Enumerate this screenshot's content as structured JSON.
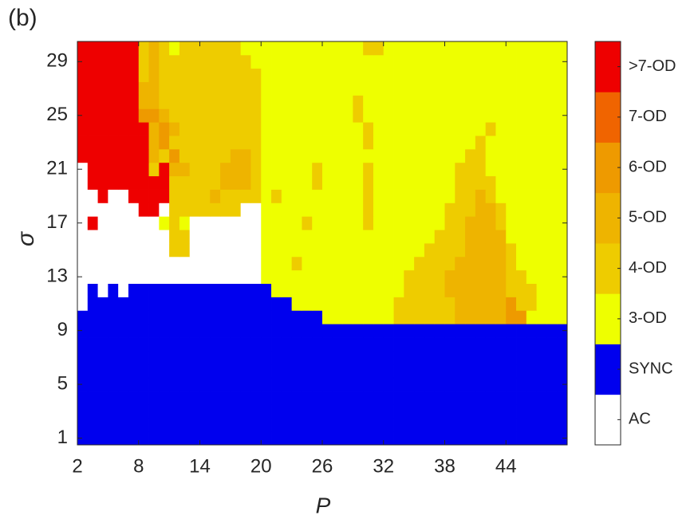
{
  "chart_data": {
    "type": "heatmap",
    "panel_label": "(b)",
    "xlabel": "P",
    "ylabel": "σ",
    "x": [
      2,
      3,
      4,
      5,
      6,
      7,
      8,
      9,
      10,
      11,
      12,
      13,
      14,
      15,
      16,
      17,
      18,
      19,
      20,
      21,
      22,
      23,
      24,
      25,
      26,
      27,
      28,
      29,
      30,
      31,
      32,
      33,
      34,
      35,
      36,
      37,
      38,
      39,
      40,
      41,
      42,
      43,
      44,
      45,
      46,
      47,
      48,
      49
    ],
    "y": [
      1,
      2,
      3,
      4,
      5,
      6,
      7,
      8,
      9,
      10,
      11,
      12,
      13,
      14,
      15,
      16,
      17,
      18,
      19,
      20,
      21,
      22,
      23,
      24,
      25,
      26,
      27,
      28,
      29,
      30
    ],
    "xlim": [
      2,
      50
    ],
    "ylim": [
      0.5,
      30.5
    ],
    "xticks": [
      2,
      8,
      14,
      20,
      26,
      32,
      38,
      44
    ],
    "yticks": [
      1,
      5,
      9,
      13,
      17,
      21,
      25,
      29
    ],
    "categories": [
      "AC",
      "SYNC",
      "3-OD",
      "4-OD",
      "5-OD",
      "6-OD",
      "7-OD",
      ">7-OD"
    ],
    "colors": [
      "#ffffff",
      "#0000ee",
      "#eeff00",
      "#eecc00",
      "#eeb400",
      "#ee9a00",
      "#f06400",
      "#ee0000"
    ],
    "z": [
      [
        1,
        1,
        1,
        1,
        1,
        1,
        1,
        1,
        1,
        1,
        1,
        1,
        1,
        1,
        1,
        1,
        1,
        1,
        1,
        1,
        1,
        1,
        1,
        1,
        1,
        1,
        1,
        1,
        1,
        1,
        1,
        1,
        1,
        1,
        1,
        1,
        1,
        1,
        1,
        1,
        1,
        1,
        1,
        1,
        1,
        1,
        1,
        1
      ],
      [
        1,
        1,
        1,
        1,
        1,
        1,
        1,
        1,
        1,
        1,
        1,
        1,
        1,
        1,
        1,
        1,
        1,
        1,
        1,
        1,
        1,
        1,
        1,
        1,
        1,
        1,
        1,
        1,
        1,
        1,
        1,
        1,
        1,
        1,
        1,
        1,
        1,
        1,
        1,
        1,
        1,
        1,
        1,
        1,
        1,
        1,
        1,
        1
      ],
      [
        1,
        1,
        1,
        1,
        1,
        1,
        1,
        1,
        1,
        1,
        1,
        1,
        1,
        1,
        1,
        1,
        1,
        1,
        1,
        1,
        1,
        1,
        1,
        1,
        1,
        1,
        1,
        1,
        1,
        1,
        1,
        1,
        1,
        1,
        1,
        1,
        1,
        1,
        1,
        1,
        1,
        1,
        1,
        1,
        1,
        1,
        1,
        1
      ],
      [
        1,
        1,
        1,
        1,
        1,
        1,
        1,
        1,
        1,
        1,
        1,
        1,
        1,
        1,
        1,
        1,
        1,
        1,
        1,
        1,
        1,
        1,
        1,
        1,
        1,
        1,
        1,
        1,
        1,
        1,
        1,
        1,
        1,
        1,
        1,
        1,
        1,
        1,
        1,
        1,
        1,
        1,
        1,
        1,
        1,
        1,
        1,
        1
      ],
      [
        1,
        1,
        1,
        1,
        1,
        1,
        1,
        1,
        1,
        1,
        1,
        1,
        1,
        1,
        1,
        1,
        1,
        1,
        1,
        1,
        1,
        1,
        1,
        1,
        1,
        1,
        1,
        1,
        1,
        1,
        1,
        1,
        1,
        1,
        1,
        1,
        1,
        1,
        1,
        1,
        1,
        1,
        1,
        1,
        1,
        1,
        1,
        1
      ],
      [
        1,
        1,
        1,
        1,
        1,
        1,
        1,
        1,
        1,
        1,
        1,
        1,
        1,
        1,
        1,
        1,
        1,
        1,
        1,
        1,
        1,
        1,
        1,
        1,
        1,
        1,
        1,
        1,
        1,
        1,
        1,
        1,
        1,
        1,
        1,
        1,
        1,
        1,
        1,
        1,
        1,
        1,
        1,
        1,
        1,
        1,
        1,
        1
      ],
      [
        1,
        1,
        1,
        1,
        1,
        1,
        1,
        1,
        1,
        1,
        1,
        1,
        1,
        1,
        1,
        1,
        1,
        1,
        1,
        1,
        1,
        1,
        1,
        1,
        1,
        1,
        1,
        1,
        1,
        1,
        1,
        1,
        1,
        1,
        1,
        1,
        1,
        1,
        1,
        1,
        1,
        1,
        1,
        1,
        1,
        1,
        1,
        1
      ],
      [
        1,
        1,
        1,
        1,
        1,
        1,
        1,
        1,
        1,
        1,
        1,
        1,
        1,
        1,
        1,
        1,
        1,
        1,
        1,
        1,
        1,
        1,
        1,
        1,
        1,
        1,
        1,
        1,
        1,
        1,
        1,
        1,
        1,
        1,
        1,
        1,
        1,
        1,
        1,
        1,
        1,
        1,
        1,
        1,
        1,
        1,
        1,
        1
      ],
      [
        1,
        1,
        1,
        1,
        1,
        1,
        1,
        1,
        1,
        1,
        1,
        1,
        1,
        1,
        1,
        1,
        1,
        1,
        1,
        1,
        1,
        1,
        1,
        1,
        1,
        1,
        1,
        1,
        1,
        1,
        1,
        1,
        1,
        1,
        1,
        1,
        1,
        1,
        1,
        1,
        1,
        1,
        1,
        1,
        1,
        1,
        1,
        1
      ],
      [
        1,
        1,
        1,
        1,
        1,
        1,
        1,
        1,
        1,
        1,
        1,
        1,
        1,
        1,
        1,
        1,
        1,
        1,
        1,
        1,
        1,
        1,
        1,
        1,
        2,
        2,
        2,
        2,
        2,
        2,
        2,
        3,
        3,
        3,
        3,
        3,
        3,
        4,
        4,
        4,
        4,
        4,
        5,
        5,
        2,
        2,
        2,
        2
      ],
      [
        0,
        1,
        1,
        1,
        1,
        1,
        1,
        1,
        1,
        1,
        1,
        1,
        1,
        1,
        1,
        1,
        1,
        1,
        1,
        1,
        1,
        2,
        2,
        2,
        2,
        2,
        2,
        2,
        2,
        2,
        2,
        3,
        3,
        3,
        3,
        3,
        3,
        4,
        4,
        4,
        4,
        4,
        5,
        3,
        3,
        2,
        2,
        2
      ],
      [
        0,
        1,
        0,
        1,
        0,
        1,
        1,
        1,
        1,
        1,
        1,
        1,
        1,
        1,
        1,
        1,
        1,
        1,
        1,
        2,
        2,
        2,
        2,
        2,
        2,
        2,
        2,
        2,
        2,
        2,
        2,
        2,
        3,
        3,
        3,
        3,
        4,
        4,
        4,
        4,
        4,
        4,
        3,
        3,
        3,
        2,
        2,
        2
      ],
      [
        0,
        0,
        0,
        0,
        0,
        0,
        0,
        0,
        0,
        0,
        0,
        0,
        0,
        0,
        0,
        0,
        0,
        0,
        2,
        2,
        2,
        2,
        2,
        2,
        2,
        2,
        2,
        2,
        2,
        2,
        2,
        2,
        3,
        3,
        3,
        3,
        4,
        4,
        4,
        4,
        4,
        4,
        3,
        3,
        2,
        2,
        2,
        2
      ],
      [
        0,
        0,
        0,
        0,
        0,
        0,
        0,
        0,
        0,
        0,
        0,
        0,
        0,
        0,
        0,
        0,
        0,
        0,
        2,
        2,
        2,
        3,
        2,
        2,
        2,
        2,
        2,
        2,
        2,
        2,
        2,
        2,
        2,
        3,
        3,
        3,
        3,
        4,
        4,
        4,
        4,
        4,
        3,
        2,
        2,
        2,
        2,
        2
      ],
      [
        0,
        0,
        0,
        0,
        0,
        0,
        0,
        0,
        0,
        3,
        3,
        0,
        0,
        0,
        0,
        0,
        0,
        0,
        2,
        2,
        2,
        2,
        2,
        2,
        2,
        2,
        2,
        2,
        2,
        2,
        2,
        2,
        2,
        2,
        3,
        3,
        3,
        3,
        4,
        4,
        4,
        4,
        3,
        2,
        2,
        2,
        2,
        2
      ],
      [
        0,
        0,
        0,
        0,
        0,
        0,
        0,
        0,
        0,
        3,
        3,
        0,
        0,
        0,
        0,
        0,
        0,
        0,
        2,
        2,
        2,
        2,
        2,
        2,
        2,
        2,
        2,
        2,
        2,
        2,
        2,
        2,
        2,
        2,
        2,
        3,
        3,
        3,
        4,
        4,
        4,
        4,
        2,
        2,
        2,
        2,
        2,
        2
      ],
      [
        0,
        7,
        0,
        0,
        0,
        0,
        0,
        0,
        2,
        3,
        2,
        0,
        0,
        0,
        0,
        0,
        0,
        0,
        2,
        2,
        2,
        2,
        3,
        2,
        2,
        2,
        2,
        2,
        3,
        2,
        2,
        2,
        2,
        2,
        2,
        2,
        3,
        3,
        4,
        4,
        4,
        3,
        2,
        2,
        2,
        2,
        2,
        2
      ],
      [
        0,
        0,
        0,
        0,
        0,
        0,
        7,
        7,
        0,
        3,
        3,
        3,
        3,
        3,
        3,
        3,
        0,
        0,
        2,
        2,
        2,
        2,
        2,
        2,
        2,
        2,
        2,
        2,
        3,
        2,
        2,
        2,
        2,
        2,
        2,
        2,
        3,
        3,
        3,
        4,
        4,
        3,
        2,
        2,
        2,
        2,
        2,
        2
      ],
      [
        0,
        0,
        7,
        0,
        0,
        7,
        7,
        7,
        7,
        3,
        3,
        3,
        3,
        4,
        3,
        3,
        3,
        3,
        2,
        3,
        2,
        2,
        2,
        2,
        2,
        2,
        2,
        2,
        3,
        2,
        2,
        2,
        2,
        2,
        2,
        2,
        2,
        3,
        3,
        4,
        3,
        2,
        2,
        2,
        2,
        2,
        2,
        2
      ],
      [
        0,
        7,
        7,
        7,
        7,
        7,
        7,
        7,
        7,
        3,
        3,
        3,
        3,
        3,
        4,
        4,
        4,
        3,
        2,
        2,
        2,
        2,
        2,
        3,
        2,
        2,
        2,
        2,
        3,
        2,
        2,
        2,
        2,
        2,
        2,
        2,
        2,
        3,
        3,
        3,
        3,
        2,
        2,
        2,
        2,
        2,
        2,
        2
      ],
      [
        0,
        7,
        7,
        7,
        7,
        7,
        7,
        3,
        7,
        4,
        4,
        3,
        3,
        3,
        4,
        4,
        4,
        3,
        2,
        2,
        2,
        2,
        2,
        3,
        2,
        2,
        2,
        2,
        3,
        2,
        2,
        2,
        2,
        2,
        2,
        2,
        2,
        3,
        3,
        3,
        2,
        2,
        2,
        2,
        2,
        2,
        2,
        2
      ],
      [
        7,
        7,
        7,
        7,
        7,
        7,
        7,
        4,
        3,
        5,
        3,
        3,
        3,
        3,
        3,
        4,
        4,
        3,
        2,
        2,
        2,
        2,
        2,
        2,
        2,
        2,
        2,
        2,
        2,
        2,
        2,
        2,
        2,
        2,
        2,
        2,
        2,
        2,
        3,
        3,
        2,
        2,
        2,
        2,
        2,
        2,
        2,
        2
      ],
      [
        7,
        7,
        7,
        7,
        7,
        7,
        7,
        4,
        5,
        3,
        3,
        3,
        3,
        3,
        3,
        3,
        3,
        3,
        2,
        2,
        2,
        2,
        2,
        2,
        2,
        2,
        2,
        2,
        3,
        2,
        2,
        2,
        2,
        2,
        2,
        2,
        2,
        2,
        2,
        3,
        2,
        2,
        2,
        2,
        2,
        2,
        2,
        2
      ],
      [
        7,
        7,
        7,
        7,
        7,
        7,
        7,
        4,
        5,
        4,
        3,
        3,
        3,
        3,
        3,
        3,
        3,
        3,
        2,
        2,
        2,
        2,
        2,
        2,
        2,
        2,
        2,
        2,
        3,
        2,
        2,
        2,
        2,
        2,
        2,
        2,
        2,
        2,
        2,
        2,
        3,
        2,
        2,
        2,
        2,
        2,
        2,
        2
      ],
      [
        7,
        7,
        7,
        7,
        7,
        7,
        5,
        5,
        4,
        3,
        3,
        3,
        3,
        3,
        3,
        3,
        3,
        3,
        2,
        2,
        2,
        2,
        2,
        2,
        2,
        2,
        2,
        3,
        2,
        2,
        2,
        2,
        2,
        2,
        2,
        2,
        2,
        2,
        2,
        2,
        2,
        2,
        2,
        2,
        2,
        2,
        2,
        2
      ],
      [
        7,
        7,
        7,
        7,
        7,
        7,
        4,
        4,
        3,
        3,
        3,
        3,
        3,
        3,
        3,
        3,
        3,
        3,
        2,
        2,
        2,
        2,
        2,
        2,
        2,
        2,
        2,
        3,
        2,
        2,
        2,
        2,
        2,
        2,
        2,
        2,
        2,
        2,
        2,
        2,
        2,
        2,
        2,
        2,
        2,
        2,
        2,
        2
      ],
      [
        7,
        7,
        7,
        7,
        7,
        7,
        4,
        4,
        3,
        3,
        3,
        3,
        3,
        3,
        3,
        3,
        3,
        3,
        2,
        2,
        2,
        2,
        2,
        2,
        2,
        2,
        2,
        2,
        2,
        2,
        2,
        2,
        2,
        2,
        2,
        2,
        2,
        2,
        2,
        2,
        2,
        2,
        2,
        2,
        2,
        2,
        2,
        2
      ],
      [
        7,
        7,
        7,
        7,
        7,
        7,
        3,
        4,
        3,
        3,
        3,
        3,
        3,
        3,
        3,
        3,
        3,
        3,
        2,
        2,
        2,
        2,
        2,
        2,
        2,
        2,
        2,
        2,
        2,
        2,
        2,
        2,
        2,
        2,
        2,
        2,
        2,
        2,
        2,
        2,
        2,
        2,
        2,
        2,
        2,
        2,
        2,
        2
      ],
      [
        7,
        7,
        7,
        7,
        7,
        7,
        3,
        4,
        3,
        3,
        3,
        3,
        3,
        3,
        3,
        3,
        3,
        2,
        2,
        2,
        2,
        2,
        2,
        2,
        2,
        2,
        2,
        2,
        2,
        2,
        2,
        2,
        2,
        2,
        2,
        2,
        2,
        2,
        2,
        2,
        2,
        2,
        2,
        2,
        2,
        2,
        2,
        2
      ],
      [
        7,
        7,
        7,
        7,
        7,
        7,
        3,
        4,
        3,
        2,
        3,
        3,
        3,
        3,
        3,
        3,
        2,
        2,
        2,
        2,
        2,
        2,
        2,
        2,
        2,
        2,
        2,
        2,
        3,
        3,
        2,
        2,
        2,
        2,
        2,
        2,
        2,
        2,
        2,
        2,
        2,
        2,
        2,
        2,
        2,
        2,
        2,
        2
      ]
    ]
  }
}
